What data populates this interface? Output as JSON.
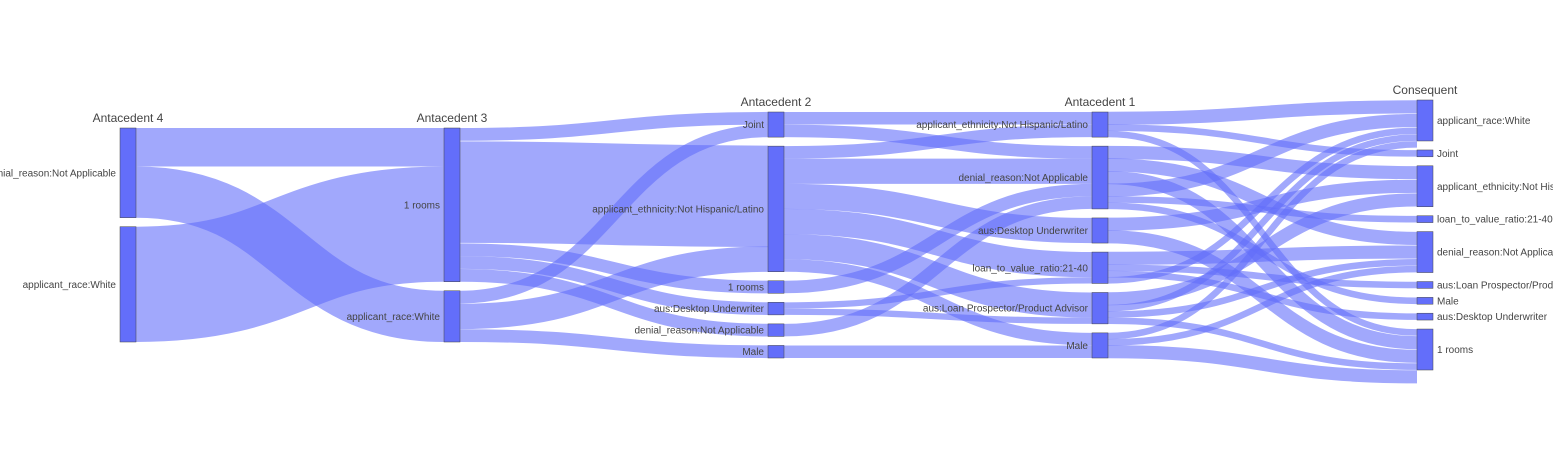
{
  "chart_data": {
    "type": "sankey",
    "columns": [
      {
        "title": "Antacedent 4",
        "nodes": [
          {
            "label": "denial_reason:Not Applicable",
            "value": 7
          },
          {
            "label": "applicant_race:White",
            "value": 9
          }
        ]
      },
      {
        "title": "Antacedent 3",
        "nodes": [
          {
            "label": "1 rooms",
            "value": 12
          },
          {
            "label": "applicant_race:White",
            "value": 4
          }
        ]
      },
      {
        "title": "Antacedent 2",
        "nodes": [
          {
            "label": "Joint",
            "value": 2
          },
          {
            "label": "applicant_ethnicity:Not Hispanic/Latino",
            "value": 10
          },
          {
            "label": "1 rooms",
            "value": 1
          },
          {
            "label": "aus:Desktop Underwriter",
            "value": 1
          },
          {
            "label": "denial_reason:Not Applicable",
            "value": 1
          },
          {
            "label": "Male",
            "value": 1
          }
        ]
      },
      {
        "title": "Antacedent 1",
        "nodes": [
          {
            "label": "applicant_ethnicity:Not Hispanic/Latino",
            "value": 2
          },
          {
            "label": "denial_reason:Not Applicable",
            "value": 5
          },
          {
            "label": "aus:Desktop Underwriter",
            "value": 2
          },
          {
            "label": "loan_to_value_ratio:21-40",
            "value": 2.5
          },
          {
            "label": "aus:Loan Prospector/Product Advisor",
            "value": 2.5
          },
          {
            "label": "Male",
            "value": 2
          }
        ]
      },
      {
        "title": "Consequent",
        "nodes": [
          {
            "label": "applicant_race:White",
            "value": 3
          },
          {
            "label": "Joint",
            "value": 0.5
          },
          {
            "label": "applicant_ethnicity:Not Hispanic/Latino",
            "value": 3
          },
          {
            "label": "loan_to_value_ratio:21-40",
            "value": 0.5
          },
          {
            "label": "denial_reason:Not Applicable",
            "value": 3
          },
          {
            "label": "aus:Loan Prospector/Product Advisor",
            "value": 0.5
          },
          {
            "label": "Male",
            "value": 0.5
          },
          {
            "label": "aus:Desktop Underwriter",
            "value": 0.5
          },
          {
            "label": "1 rooms",
            "value": 3
          }
        ]
      }
    ],
    "links": [
      {
        "source": [
          0,
          0
        ],
        "target": [
          1,
          0
        ],
        "value": 3
      },
      {
        "source": [
          0,
          0
        ],
        "target": [
          1,
          1
        ],
        "value": 4
      },
      {
        "source": [
          0,
          1
        ],
        "target": [
          1,
          0
        ],
        "value": 9
      },
      {
        "source": [
          1,
          0
        ],
        "target": [
          2,
          0
        ],
        "value": 1
      },
      {
        "source": [
          1,
          0
        ],
        "target": [
          2,
          1
        ],
        "value": 8
      },
      {
        "source": [
          1,
          0
        ],
        "target": [
          2,
          2
        ],
        "value": 1
      },
      {
        "source": [
          1,
          0
        ],
        "target": [
          2,
          3
        ],
        "value": 1
      },
      {
        "source": [
          1,
          0
        ],
        "target": [
          2,
          4
        ],
        "value": 1
      },
      {
        "source": [
          1,
          1
        ],
        "target": [
          2,
          0
        ],
        "value": 1
      },
      {
        "source": [
          1,
          1
        ],
        "target": [
          2,
          1
        ],
        "value": 2
      },
      {
        "source": [
          1,
          1
        ],
        "target": [
          2,
          5
        ],
        "value": 1
      },
      {
        "source": [
          2,
          0
        ],
        "target": [
          3,
          0
        ],
        "value": 1
      },
      {
        "source": [
          2,
          0
        ],
        "target": [
          3,
          1
        ],
        "value": 1
      },
      {
        "source": [
          2,
          1
        ],
        "target": [
          3,
          0
        ],
        "value": 1
      },
      {
        "source": [
          2,
          1
        ],
        "target": [
          3,
          1
        ],
        "value": 2
      },
      {
        "source": [
          2,
          1
        ],
        "target": [
          3,
          2
        ],
        "value": 2
      },
      {
        "source": [
          2,
          1
        ],
        "target": [
          3,
          3
        ],
        "value": 2
      },
      {
        "source": [
          2,
          1
        ],
        "target": [
          3,
          4
        ],
        "value": 2
      },
      {
        "source": [
          2,
          1
        ],
        "target": [
          3,
          5
        ],
        "value": 1
      },
      {
        "source": [
          2,
          2
        ],
        "target": [
          3,
          1
        ],
        "value": 1
      },
      {
        "source": [
          2,
          3
        ],
        "target": [
          3,
          3
        ],
        "value": 0.5
      },
      {
        "source": [
          2,
          3
        ],
        "target": [
          3,
          4
        ],
        "value": 0.5
      },
      {
        "source": [
          2,
          4
        ],
        "target": [
          3,
          1
        ],
        "value": 1
      },
      {
        "source": [
          2,
          5
        ],
        "target": [
          3,
          5
        ],
        "value": 1
      },
      {
        "source": [
          3,
          0
        ],
        "target": [
          4,
          0
        ],
        "value": 1
      },
      {
        "source": [
          3,
          0
        ],
        "target": [
          4,
          1
        ],
        "value": 0.5
      },
      {
        "source": [
          3,
          0
        ],
        "target": [
          4,
          8
        ],
        "value": 0.5
      },
      {
        "source": [
          3,
          1
        ],
        "target": [
          4,
          2
        ],
        "value": 1
      },
      {
        "source": [
          3,
          1
        ],
        "target": [
          4,
          4
        ],
        "value": 1
      },
      {
        "source": [
          3,
          1
        ],
        "target": [
          4,
          8
        ],
        "value": 1
      },
      {
        "source": [
          3,
          1
        ],
        "target": [
          4,
          0
        ],
        "value": 1
      },
      {
        "source": [
          3,
          1
        ],
        "target": [
          4,
          3
        ],
        "value": 0.5
      },
      {
        "source": [
          3,
          1
        ],
        "target": [
          4,
          6
        ],
        "value": 0.5
      },
      {
        "source": [
          3,
          2
        ],
        "target": [
          4,
          2
        ],
        "value": 1
      },
      {
        "source": [
          3,
          2
        ],
        "target": [
          4,
          8
        ],
        "value": 1
      },
      {
        "source": [
          3,
          3
        ],
        "target": [
          4,
          4
        ],
        "value": 1
      },
      {
        "source": [
          3,
          3
        ],
        "target": [
          4,
          5
        ],
        "value": 0.5
      },
      {
        "source": [
          3,
          3
        ],
        "target": [
          4,
          7
        ],
        "value": 0.5
      },
      {
        "source": [
          3,
          3
        ],
        "target": [
          4,
          0
        ],
        "value": 0.5
      },
      {
        "source": [
          3,
          4
        ],
        "target": [
          4,
          2
        ],
        "value": 1
      },
      {
        "source": [
          3,
          4
        ],
        "target": [
          4,
          0
        ],
        "value": 0.5
      },
      {
        "source": [
          3,
          4
        ],
        "target": [
          4,
          4
        ],
        "value": 0.5
      },
      {
        "source": [
          3,
          4
        ],
        "target": [
          4,
          8
        ],
        "value": 0.5
      },
      {
        "source": [
          3,
          5
        ],
        "target": [
          4,
          0
        ],
        "value": 0.5
      },
      {
        "source": [
          3,
          5
        ],
        "target": [
          4,
          4
        ],
        "value": 0.5
      },
      {
        "source": [
          3,
          5
        ],
        "target": [
          4,
          8
        ],
        "value": 1
      }
    ]
  }
}
